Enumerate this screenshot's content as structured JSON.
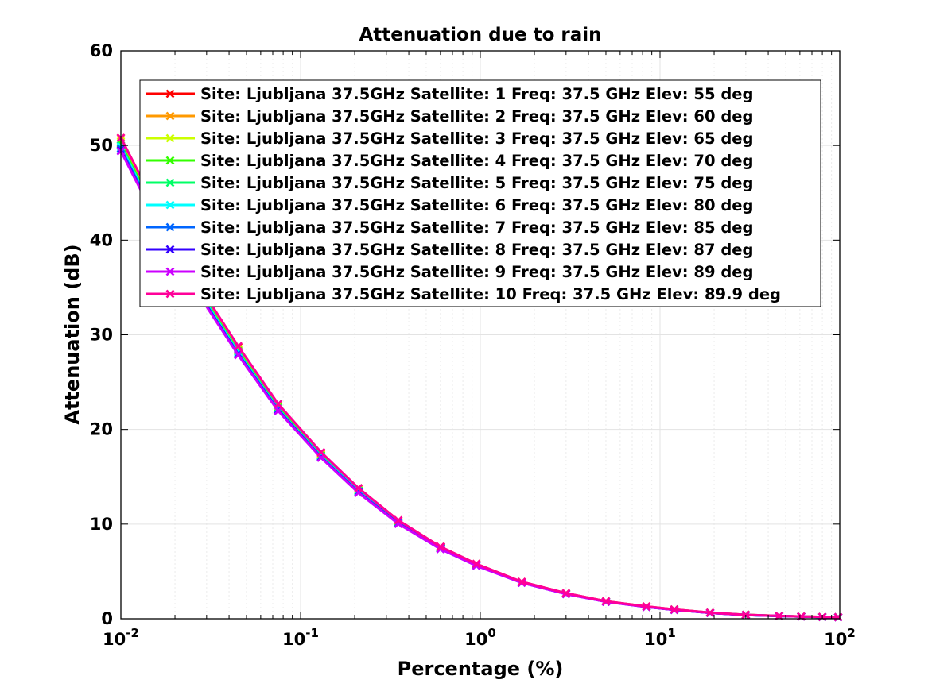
{
  "chart_data": {
    "type": "line",
    "title": "Attenuation due to rain",
    "xlabel": "Percentage (%)",
    "ylabel": "Attenuation (dB)",
    "xscale": "log",
    "xlim": [
      0.01,
      100
    ],
    "ylim": [
      0,
      60
    ],
    "grid": true,
    "legend_position": "top-right",
    "x_ticks": [
      {
        "value": 0.01,
        "base": "10",
        "exp": "-2"
      },
      {
        "value": 0.1,
        "base": "10",
        "exp": "-1"
      },
      {
        "value": 1,
        "base": "10",
        "exp": "0"
      },
      {
        "value": 10,
        "base": "10",
        "exp": "1"
      },
      {
        "value": 100,
        "base": "10",
        "exp": "2"
      }
    ],
    "y_ticks": [
      {
        "value": 0,
        "label": "0"
      },
      {
        "value": 10,
        "label": "10"
      },
      {
        "value": 20,
        "label": "20"
      },
      {
        "value": 30,
        "label": "30"
      },
      {
        "value": 40,
        "label": "40"
      },
      {
        "value": 50,
        "label": "50"
      },
      {
        "value": 60,
        "label": "60"
      }
    ],
    "x": [
      0.01,
      0.016,
      0.027,
      0.045,
      0.075,
      0.13,
      0.21,
      0.35,
      0.6,
      0.95,
      1.7,
      3.0,
      5.0,
      8.4,
      12.0,
      19.0,
      30.0,
      46.0,
      61.0,
      80.0,
      98.0
    ],
    "series": [
      {
        "name": "Site: Ljubljana 37.5GHz Satellite: 1 Freq: 37.5 GHz Elev: 55 deg",
        "color": "#ff0000",
        "values": [
          50.8,
          43.2,
          35.3,
          28.7,
          22.6,
          17.5,
          13.8,
          10.4,
          7.6,
          5.8,
          3.9,
          2.7,
          1.85,
          1.3,
          0.98,
          0.65,
          0.42,
          0.3,
          0.24,
          0.2,
          0.17
        ]
      },
      {
        "name": "Site: Ljubljana 37.5GHz Satellite: 2 Freq: 37.5 GHz Elev: 60 deg",
        "color": "#ff9900",
        "values": [
          50.6,
          43.0,
          35.1,
          28.5,
          22.5,
          17.4,
          13.7,
          10.3,
          7.55,
          5.75,
          3.88,
          2.68,
          1.84,
          1.29,
          0.97,
          0.64,
          0.41,
          0.3,
          0.24,
          0.2,
          0.17
        ]
      },
      {
        "name": "Site: Ljubljana 37.5GHz Satellite: 3 Freq: 37.5 GHz Elev: 65 deg",
        "color": "#ccff00",
        "values": [
          50.4,
          42.8,
          34.9,
          28.4,
          22.4,
          17.3,
          13.6,
          10.25,
          7.5,
          5.72,
          3.86,
          2.66,
          1.83,
          1.28,
          0.96,
          0.64,
          0.41,
          0.29,
          0.23,
          0.19,
          0.16
        ]
      },
      {
        "name": "Site: Ljubljana 37.5GHz Satellite: 4 Freq: 37.5 GHz Elev: 70 deg",
        "color": "#33ff00",
        "values": [
          50.2,
          42.6,
          34.8,
          28.3,
          22.3,
          17.25,
          13.55,
          10.2,
          7.48,
          5.7,
          3.85,
          2.65,
          1.82,
          1.27,
          0.96,
          0.63,
          0.41,
          0.29,
          0.23,
          0.19,
          0.16
        ]
      },
      {
        "name": "Site: Ljubljana 37.5GHz Satellite: 5 Freq: 37.5 GHz Elev: 75 deg",
        "color": "#00ff66",
        "values": [
          50.0,
          42.4,
          34.7,
          28.2,
          22.2,
          17.2,
          13.5,
          10.15,
          7.45,
          5.68,
          3.84,
          2.64,
          1.81,
          1.27,
          0.95,
          0.63,
          0.41,
          0.29,
          0.23,
          0.19,
          0.16
        ]
      },
      {
        "name": "Site: Ljubljana 37.5GHz Satellite: 6 Freq: 37.5 GHz Elev: 80 deg",
        "color": "#00ffff",
        "values": [
          49.9,
          42.3,
          34.6,
          28.1,
          22.15,
          17.15,
          13.45,
          10.12,
          7.43,
          5.66,
          3.83,
          2.63,
          1.81,
          1.26,
          0.95,
          0.63,
          0.4,
          0.29,
          0.23,
          0.19,
          0.16
        ]
      },
      {
        "name": "Site: Ljubljana 37.5GHz Satellite: 7 Freq: 37.5 GHz Elev: 85 deg",
        "color": "#0066ff",
        "values": [
          49.7,
          42.1,
          34.5,
          28.0,
          22.1,
          17.1,
          13.4,
          10.1,
          7.4,
          5.64,
          3.82,
          2.62,
          1.8,
          1.26,
          0.95,
          0.62,
          0.4,
          0.29,
          0.23,
          0.19,
          0.16
        ]
      },
      {
        "name": "Site: Ljubljana 37.5GHz Satellite: 8 Freq: 37.5 GHz Elev: 87 deg",
        "color": "#3300ff",
        "values": [
          49.5,
          41.9,
          34.4,
          27.9,
          22.0,
          17.05,
          13.35,
          10.05,
          7.38,
          5.62,
          3.81,
          2.62,
          1.8,
          1.25,
          0.94,
          0.62,
          0.4,
          0.29,
          0.23,
          0.19,
          0.16
        ]
      },
      {
        "name": "Site: Ljubljana 37.5GHz Satellite: 9 Freq: 37.5 GHz Elev: 89 deg",
        "color": "#cc00ff",
        "values": [
          49.4,
          41.8,
          34.3,
          27.85,
          21.95,
          17.0,
          13.3,
          10.02,
          7.36,
          5.6,
          3.8,
          2.61,
          1.79,
          1.25,
          0.94,
          0.62,
          0.4,
          0.29,
          0.23,
          0.19,
          0.16
        ]
      },
      {
        "name": "Site: Ljubljana 37.5GHz Satellite: 10 Freq: 37.5 GHz Elev: 89.9 deg",
        "color": "#ff0099",
        "values": [
          50.8,
          43.3,
          35.3,
          28.8,
          22.7,
          17.6,
          13.8,
          10.4,
          7.6,
          5.8,
          3.9,
          2.7,
          1.85,
          1.3,
          0.98,
          0.65,
          0.42,
          0.3,
          0.24,
          0.2,
          0.17
        ]
      }
    ]
  }
}
